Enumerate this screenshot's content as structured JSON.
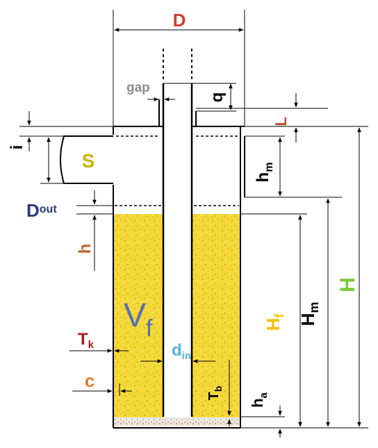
{
  "labels": {
    "D": "D",
    "gap": "gap",
    "q": "q",
    "L": "L",
    "i": "i",
    "S": "S",
    "h_m": "h",
    "h_m_sub": "m",
    "D_out": "D",
    "D_out_sub": "out",
    "h": "h",
    "V_f": "V",
    "V_f_sub": "f",
    "H_f": "H",
    "H_f_sub": "f",
    "H_m": "H",
    "H_m_sub": "m",
    "H": "H",
    "T_k": "T",
    "T_k_sub": "k",
    "d_in": "d",
    "d_in_sub": "in",
    "c": "c",
    "T_b": "T",
    "T_b_sub": "b",
    "h_a": "h",
    "h_a_sub": "a"
  },
  "colors": {
    "D": "#d63a2a",
    "gap": "#8c8c8c",
    "q": "#000000",
    "L": "#b0522a",
    "i": "#000000",
    "S": "#c7b400",
    "h_m": "#000000",
    "D_out": "#2a3a7c",
    "h": "#c06a2e",
    "V_f": "#5a6fb0",
    "H_f": "#f2c200",
    "H_m": "#000000",
    "H": "#7cc83a",
    "T_k": "#b01818",
    "d_in": "#4fb2e6",
    "c": "#e07a2a",
    "T_b": "#000000",
    "h_a": "#000000",
    "filter_fill": "#f4d93a"
  }
}
